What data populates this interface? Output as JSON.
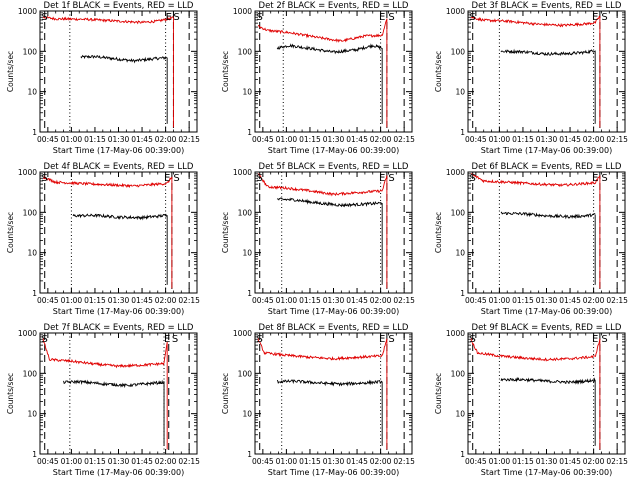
{
  "figure": {
    "colors": {
      "events": "#000000",
      "lld": "#e00000",
      "background": "#ffffff"
    },
    "marker_labels": [
      "S",
      "E",
      "S"
    ]
  },
  "chart_data": [
    {
      "type": "line",
      "title": "Det 1f BLACK = Events, RED = LLD",
      "xlabel": "Start Time (17-May-06 00:39:00)",
      "ylabel": "Counts/sec",
      "yscale": "log",
      "ylim": [
        1,
        1000
      ],
      "xlim": [
        40,
        140
      ],
      "ytick_labels": [
        "1",
        "10",
        "100",
        "1000"
      ],
      "xtick_values": [
        45,
        60,
        75,
        90,
        105,
        120,
        135
      ],
      "xtick_labels": [
        "00:45",
        "01:00",
        "01:15",
        "01:30",
        "01:45",
        "02:00",
        "02:15"
      ],
      "series": [
        {
          "name": "Events",
          "points": [
            [
              66,
              72
            ],
            [
              75,
              74
            ],
            [
              90,
              64
            ],
            [
              100,
              58
            ],
            [
              110,
              64
            ],
            [
              121,
              70
            ]
          ]
        },
        {
          "name": "LLD",
          "points": [
            [
              42,
              700
            ],
            [
              50,
              640
            ],
            [
              70,
              620
            ],
            [
              90,
              560
            ],
            [
              105,
              520
            ],
            [
              115,
              560
            ],
            [
              125,
              680
            ]
          ]
        }
      ],
      "dashed_lines": [
        43,
        125,
        135
      ],
      "dotted_lines": [
        59,
        120
      ],
      "annotations": [
        {
          "text": "S",
          "x": 43
        },
        {
          "text": "E",
          "x": 122
        },
        {
          "text": "S",
          "x": 127
        }
      ]
    },
    {
      "type": "line",
      "title": "Det 2f BLACK = Events, RED = LLD",
      "xlabel": "Start Time (17-May-06 00:39:00)",
      "ylabel": "Counts/sec",
      "yscale": "log",
      "ylim": [
        1,
        1000
      ],
      "xlim": [
        40,
        140
      ],
      "ytick_labels": [
        "1",
        "10",
        "100",
        "1000"
      ],
      "xtick_values": [
        45,
        60,
        75,
        90,
        105,
        120,
        135
      ],
      "xtick_labels": [
        "00:45",
        "01:00",
        "01:15",
        "01:30",
        "01:45",
        "02:00",
        "02:15"
      ],
      "series": [
        {
          "name": "Events",
          "points": [
            [
              54,
              120
            ],
            [
              62,
              140
            ],
            [
              75,
              118
            ],
            [
              90,
              95
            ],
            [
              105,
              110
            ],
            [
              115,
              140
            ],
            [
              121,
              120
            ]
          ]
        },
        {
          "name": "LLD",
          "points": [
            [
              42,
              420
            ],
            [
              48,
              330
            ],
            [
              62,
              290
            ],
            [
              80,
              220
            ],
            [
              95,
              180
            ],
            [
              110,
              240
            ],
            [
              121,
              250
            ],
            [
              124,
              650
            ]
          ]
        }
      ],
      "dashed_lines": [
        43,
        124,
        135
      ],
      "dotted_lines": [
        58,
        120
      ],
      "annotations": [
        {
          "text": "S",
          "x": 43
        },
        {
          "text": "E",
          "x": 121
        },
        {
          "text": "S",
          "x": 127
        }
      ]
    },
    {
      "type": "line",
      "title": "Det 3f BLACK = Events, RED = LLD",
      "xlabel": "Start Time (17-May-06 00:39:00)",
      "ylabel": "Counts/sec",
      "yscale": "log",
      "ylim": [
        1,
        1000
      ],
      "xlim": [
        40,
        140
      ],
      "ytick_labels": [
        "1",
        "10",
        "100",
        "1000"
      ],
      "xtick_values": [
        45,
        60,
        75,
        90,
        105,
        120,
        135
      ],
      "xtick_labels": [
        "00:45",
        "01:00",
        "01:15",
        "01:30",
        "01:45",
        "02:00",
        "02:15"
      ],
      "series": [
        {
          "name": "Events",
          "points": [
            [
              61,
              100
            ],
            [
              75,
              98
            ],
            [
              90,
              86
            ],
            [
              105,
              88
            ],
            [
              115,
              95
            ],
            [
              121,
              105
            ]
          ]
        },
        {
          "name": "LLD",
          "points": [
            [
              42,
              700
            ],
            [
              50,
              590
            ],
            [
              65,
              560
            ],
            [
              85,
              470
            ],
            [
              100,
              440
            ],
            [
              115,
              480
            ],
            [
              121,
              510
            ],
            [
              124,
              750
            ]
          ]
        }
      ],
      "dashed_lines": [
        43,
        124,
        135
      ],
      "dotted_lines": [
        60,
        120
      ],
      "annotations": [
        {
          "text": "S",
          "x": 43
        },
        {
          "text": "E",
          "x": 121
        },
        {
          "text": "S",
          "x": 127
        }
      ]
    },
    {
      "type": "line",
      "title": "Det 4f BLACK = Events, RED = LLD",
      "xlabel": "Start Time (17-May-06 00:39:00)",
      "ylabel": "Counts/sec",
      "yscale": "log",
      "ylim": [
        1,
        1000
      ],
      "xlim": [
        40,
        140
      ],
      "ytick_labels": [
        "1",
        "10",
        "100",
        "1000"
      ],
      "xtick_values": [
        45,
        60,
        75,
        90,
        105,
        120,
        135
      ],
      "xtick_labels": [
        "00:45",
        "01:00",
        "01:15",
        "01:30",
        "01:45",
        "02:00",
        "02:15"
      ],
      "series": [
        {
          "name": "Events",
          "points": [
            [
              61,
              82
            ],
            [
              75,
              84
            ],
            [
              90,
              76
            ],
            [
              105,
              74
            ],
            [
              115,
              80
            ],
            [
              121,
              85
            ]
          ]
        },
        {
          "name": "LLD",
          "points": [
            [
              42,
              750
            ],
            [
              50,
              560
            ],
            [
              65,
              520
            ],
            [
              85,
              480
            ],
            [
              100,
              450
            ],
            [
              115,
              500
            ],
            [
              121,
              520
            ],
            [
              124,
              760
            ]
          ]
        }
      ],
      "dashed_lines": [
        43,
        124,
        135
      ],
      "dotted_lines": [
        60,
        120
      ],
      "annotations": [
        {
          "text": "S",
          "x": 43
        },
        {
          "text": "E",
          "x": 121
        },
        {
          "text": "S",
          "x": 127
        }
      ]
    },
    {
      "type": "line",
      "title": "Det 5f BLACK = Events, RED = LLD",
      "xlabel": "Start Time (17-May-06 00:39:00)",
      "ylabel": "Counts/sec",
      "yscale": "log",
      "ylim": [
        1,
        1000
      ],
      "xlim": [
        40,
        140
      ],
      "ytick_labels": [
        "1",
        "10",
        "100",
        "1000"
      ],
      "xtick_values": [
        45,
        60,
        75,
        90,
        105,
        120,
        135
      ],
      "xtick_labels": [
        "00:45",
        "01:00",
        "01:15",
        "01:30",
        "01:45",
        "02:00",
        "02:15"
      ],
      "series": [
        {
          "name": "Events",
          "points": [
            [
              54,
              210
            ],
            [
              65,
              205
            ],
            [
              80,
              170
            ],
            [
              95,
              150
            ],
            [
              110,
              160
            ],
            [
              121,
              170
            ]
          ]
        },
        {
          "name": "LLD",
          "points": [
            [
              42,
              900
            ],
            [
              48,
              430
            ],
            [
              60,
              400
            ],
            [
              75,
              340
            ],
            [
              90,
              280
            ],
            [
              105,
              310
            ],
            [
              121,
              340
            ],
            [
              124,
              800
            ]
          ]
        }
      ],
      "dashed_lines": [
        43,
        124,
        135
      ],
      "dotted_lines": [
        57,
        120
      ],
      "annotations": [
        {
          "text": "S",
          "x": 43
        },
        {
          "text": "E",
          "x": 121
        },
        {
          "text": "S",
          "x": 127
        }
      ]
    },
    {
      "type": "line",
      "title": "Det 6f BLACK = Events, RED = LLD",
      "xlabel": "Start Time (17-May-06 00:39:00)",
      "ylabel": "Counts/sec",
      "yscale": "log",
      "ylim": [
        1,
        1000
      ],
      "xlim": [
        40,
        140
      ],
      "ytick_labels": [
        "1",
        "10",
        "100",
        "1000"
      ],
      "xtick_values": [
        45,
        60,
        75,
        90,
        105,
        120,
        135
      ],
      "xtick_labels": [
        "00:45",
        "01:00",
        "01:15",
        "01:30",
        "01:45",
        "02:00",
        "02:15"
      ],
      "series": [
        {
          "name": "Events",
          "points": [
            [
              61,
              95
            ],
            [
              75,
              92
            ],
            [
              90,
              82
            ],
            [
              105,
              78
            ],
            [
              115,
              82
            ],
            [
              121,
              88
            ]
          ]
        },
        {
          "name": "LLD",
          "points": [
            [
              42,
              900
            ],
            [
              50,
              600
            ],
            [
              65,
              560
            ],
            [
              85,
              500
            ],
            [
              100,
              470
            ],
            [
              115,
              520
            ],
            [
              121,
              540
            ],
            [
              124,
              800
            ]
          ]
        }
      ],
      "dashed_lines": [
        43,
        124,
        135
      ],
      "dotted_lines": [
        60,
        120
      ],
      "annotations": [
        {
          "text": "S",
          "x": 43
        },
        {
          "text": "E",
          "x": 121
        },
        {
          "text": "S",
          "x": 127
        }
      ]
    },
    {
      "type": "line",
      "title": "Det 7f BLACK = Events, RED = LLD",
      "xlabel": "Start Time (17-May-06 00:39:00)",
      "ylabel": "Counts/sec",
      "yscale": "log",
      "ylim": [
        1,
        1000
      ],
      "xlim": [
        40,
        140
      ],
      "ytick_labels": [
        "1",
        "10",
        "100",
        "1000"
      ],
      "xtick_values": [
        45,
        60,
        75,
        90,
        105,
        120,
        135
      ],
      "xtick_labels": [
        "00:45",
        "01:00",
        "01:15",
        "01:30",
        "01:45",
        "02:00",
        "02:15"
      ],
      "series": [
        {
          "name": "Events",
          "points": [
            [
              55,
              60
            ],
            [
              65,
              62
            ],
            [
              80,
              55
            ],
            [
              95,
              50
            ],
            [
              110,
              56
            ],
            [
              119,
              60
            ]
          ]
        },
        {
          "name": "LLD",
          "points": [
            [
              42,
              700
            ],
            [
              46,
              220
            ],
            [
              60,
              200
            ],
            [
              75,
              170
            ],
            [
              90,
              150
            ],
            [
              105,
              160
            ],
            [
              119,
              175
            ],
            [
              121,
              600
            ]
          ]
        }
      ],
      "dashed_lines": [
        43,
        122,
        135
      ],
      "dotted_lines": [
        59,
        119
      ],
      "annotations": [
        {
          "text": "S",
          "x": 43
        },
        {
          "text": "E",
          "x": 121
        },
        {
          "text": "S",
          "x": 126
        }
      ]
    },
    {
      "type": "line",
      "title": "Det 8f BLACK = Events, RED = LLD",
      "xlabel": "Start Time (17-May-06 00:39:00)",
      "ylabel": "Counts/sec",
      "yscale": "log",
      "ylim": [
        1,
        1000
      ],
      "xlim": [
        40,
        140
      ],
      "ytick_labels": [
        "1",
        "10",
        "100",
        "1000"
      ],
      "xtick_values": [
        45,
        60,
        75,
        90,
        105,
        120,
        135
      ],
      "xtick_labels": [
        "00:45",
        "01:00",
        "01:15",
        "01:30",
        "01:45",
        "02:00",
        "02:15"
      ],
      "series": [
        {
          "name": "Events",
          "points": [
            [
              54,
              62
            ],
            [
              65,
              64
            ],
            [
              80,
              58
            ],
            [
              95,
              54
            ],
            [
              110,
              58
            ],
            [
              121,
              62
            ]
          ]
        },
        {
          "name": "LLD",
          "points": [
            [
              42,
              700
            ],
            [
              46,
              320
            ],
            [
              60,
              280
            ],
            [
              75,
              250
            ],
            [
              90,
              230
            ],
            [
              105,
              250
            ],
            [
              121,
              270
            ],
            [
              124,
              700
            ]
          ]
        }
      ],
      "dashed_lines": [
        43,
        124,
        135
      ],
      "dotted_lines": [
        57,
        120
      ],
      "annotations": [
        {
          "text": "S",
          "x": 43
        },
        {
          "text": "E",
          "x": 121
        },
        {
          "text": "S",
          "x": 127
        }
      ]
    },
    {
      "type": "line",
      "title": "Det 9f BLACK = Events, RED = LLD",
      "xlabel": "Start Time (17-May-06 00:39:00)",
      "ylabel": "Counts/sec",
      "yscale": "log",
      "ylim": [
        1,
        1000
      ],
      "xlim": [
        40,
        140
      ],
      "ytick_labels": [
        "1",
        "10",
        "100",
        "1000"
      ],
      "xtick_values": [
        45,
        60,
        75,
        90,
        105,
        120,
        135
      ],
      "xtick_labels": [
        "00:45",
        "01:00",
        "01:15",
        "01:30",
        "01:45",
        "02:00",
        "02:15"
      ],
      "series": [
        {
          "name": "Events",
          "points": [
            [
              61,
              70
            ],
            [
              75,
              70
            ],
            [
              90,
              64
            ],
            [
              105,
              60
            ],
            [
              115,
              64
            ],
            [
              121,
              68
            ]
          ]
        },
        {
          "name": "LLD",
          "points": [
            [
              42,
              700
            ],
            [
              46,
              320
            ],
            [
              60,
              270
            ],
            [
              75,
              240
            ],
            [
              90,
              220
            ],
            [
              105,
              230
            ],
            [
              121,
              260
            ],
            [
              124,
              700
            ]
          ]
        }
      ],
      "dashed_lines": [
        43,
        124,
        135
      ],
      "dotted_lines": [
        60,
        120
      ],
      "annotations": [
        {
          "text": "S",
          "x": 43
        },
        {
          "text": "E",
          "x": 121
        },
        {
          "text": "S",
          "x": 127
        }
      ]
    }
  ]
}
